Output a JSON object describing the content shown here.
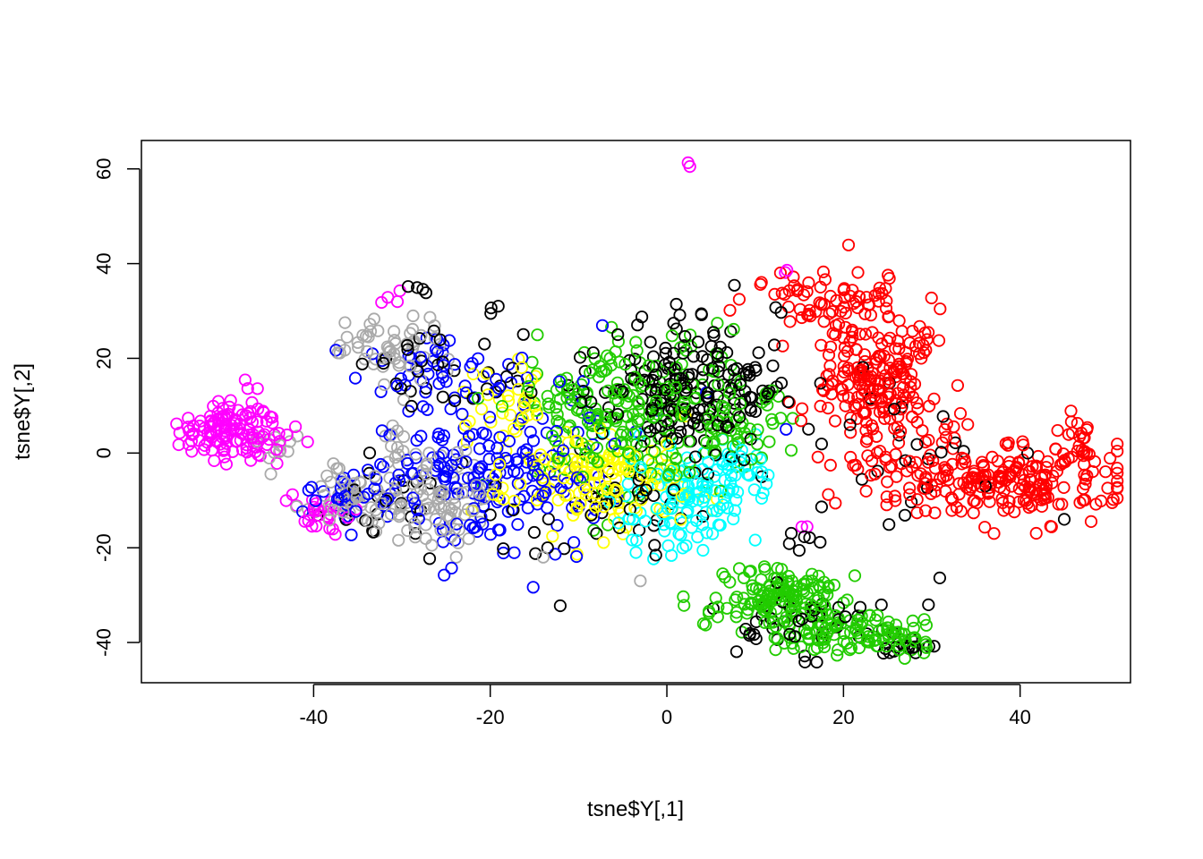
{
  "chart_data": {
    "type": "scatter",
    "title": "",
    "xlabel": "tsne$Y[,1]",
    "ylabel": "tsne$Y[,2]",
    "xlim": [
      -59.5,
      52.5
    ],
    "ylim": [
      -48.5,
      66
    ],
    "xticks": [
      -40,
      -20,
      0,
      20,
      40
    ],
    "yticks": [
      -40,
      -20,
      0,
      20,
      40,
      60
    ],
    "grid": false,
    "legend": "none",
    "marker": "open-circle",
    "colors": {
      "black": "#000000",
      "red": "#ff0000",
      "green": "#22cc00",
      "blue": "#0000ff",
      "cyan": "#00ffff",
      "magenta": "#ff00ff",
      "yellow": "#ffff00",
      "gray": "#aaaaaa"
    },
    "clusters": [
      {
        "color": "magenta",
        "cx": -49,
        "cy": 5,
        "sx": 3.0,
        "sy": 3.6,
        "n": 130,
        "shape": "blob"
      },
      {
        "color": "gray",
        "cx": -44,
        "cy": 2,
        "sx": 1.5,
        "sy": 1.5,
        "n": 10,
        "shape": "blob"
      },
      {
        "color": "red",
        "cx": 24,
        "cy": 16,
        "sx": 3.5,
        "sy": 8,
        "n": 230,
        "shape": "blob"
      },
      {
        "color": "red",
        "cx": 37,
        "cy": -6,
        "sx": 7,
        "sy": 4,
        "n": 220,
        "shape": "blob"
      },
      {
        "color": "red",
        "cx": 17,
        "cy": 33,
        "sx": 4,
        "sy": 2.5,
        "n": 50,
        "shape": "blob"
      },
      {
        "color": "red",
        "cx": 46,
        "cy": 3,
        "sx": 1.8,
        "sy": 3,
        "n": 25,
        "shape": "blob"
      },
      {
        "color": "green",
        "cx": 13,
        "cy": -31,
        "sx": 4,
        "sy": 4,
        "n": 160,
        "shape": "blob"
      },
      {
        "color": "green",
        "cx": 22,
        "cy": -38,
        "sx": 4.5,
        "sy": 2.2,
        "n": 100,
        "shape": "blob"
      },
      {
        "color": "black",
        "cx": 16,
        "cy": -36,
        "sx": 6,
        "sy": 4,
        "n": 45,
        "shape": "blob"
      },
      {
        "color": "black",
        "cx": 28,
        "cy": -41,
        "sx": 2,
        "sy": 1,
        "n": 14,
        "shape": "blob"
      },
      {
        "color": "black",
        "cx": 3,
        "cy": 13,
        "sx": 5.5,
        "sy": 7,
        "n": 190,
        "shape": "blob"
      },
      {
        "color": "green",
        "cx": -3,
        "cy": 8,
        "sx": 6,
        "sy": 8,
        "n": 190,
        "shape": "blob"
      },
      {
        "color": "yellow",
        "cx": -8,
        "cy": -6,
        "sx": 5.5,
        "sy": 5.5,
        "n": 140,
        "shape": "blob"
      },
      {
        "color": "yellow",
        "cx": -18,
        "cy": 10,
        "sx": 2.5,
        "sy": 4,
        "n": 30,
        "shape": "blob"
      },
      {
        "color": "cyan",
        "cx": 2,
        "cy": -10,
        "sx": 4.5,
        "sy": 5,
        "n": 110,
        "shape": "blob"
      },
      {
        "color": "cyan",
        "cx": 8,
        "cy": -3,
        "sx": 2.5,
        "sy": 3,
        "n": 30,
        "shape": "blob"
      },
      {
        "color": "blue",
        "cx": -22,
        "cy": -5,
        "sx": 6,
        "sy": 9,
        "n": 130,
        "shape": "blob"
      },
      {
        "color": "blue",
        "cx": -13,
        "cy": 0,
        "sx": 6,
        "sy": 10,
        "n": 60,
        "shape": "blob"
      },
      {
        "color": "gray",
        "cx": -34,
        "cy": -10,
        "sx": 5,
        "sy": 3.5,
        "n": 85,
        "shape": "blob"
      },
      {
        "color": "gray",
        "cx": -25,
        "cy": -12,
        "sx": 3,
        "sy": 4,
        "n": 45,
        "shape": "blob"
      },
      {
        "color": "blue",
        "cx": -36,
        "cy": -10,
        "sx": 3.5,
        "sy": 3,
        "n": 30,
        "shape": "blob"
      },
      {
        "color": "magenta",
        "cx": -39,
        "cy": -13,
        "sx": 2.5,
        "sy": 3,
        "n": 28,
        "shape": "blob"
      },
      {
        "color": "black",
        "cx": -30,
        "cy": -10,
        "sx": 6,
        "sy": 5,
        "n": 25,
        "shape": "blob"
      },
      {
        "color": "gray",
        "cx": -31,
        "cy": 22,
        "sx": 3,
        "sy": 4,
        "n": 55,
        "shape": "blob"
      },
      {
        "color": "blue",
        "cx": -26,
        "cy": 18,
        "sx": 4,
        "sy": 4,
        "n": 40,
        "shape": "blob"
      },
      {
        "color": "black",
        "cx": -24,
        "cy": 17,
        "sx": 5,
        "sy": 6,
        "n": 35,
        "shape": "blob"
      },
      {
        "color": "magenta",
        "cx": -30,
        "cy": 33,
        "sx": 1,
        "sy": 1,
        "n": 4,
        "shape": "blob"
      },
      {
        "color": "black",
        "cx": -28,
        "cy": 34.5,
        "sx": 0.6,
        "sy": 0.5,
        "n": 4,
        "shape": "blob"
      },
      {
        "color": "gray",
        "cx": -30,
        "cy": 2,
        "sx": 2.5,
        "sy": 5,
        "n": 20,
        "shape": "blob"
      },
      {
        "color": "green",
        "cx": -10,
        "cy": 12,
        "sx": 4,
        "sy": 6,
        "n": 50,
        "shape": "blob"
      },
      {
        "color": "black",
        "cx": -6,
        "cy": -14,
        "sx": 5,
        "sy": 6,
        "n": 40,
        "shape": "blob"
      },
      {
        "color": "green",
        "cx": 8,
        "cy": 5,
        "sx": 3,
        "sy": 5,
        "n": 45,
        "shape": "blob"
      },
      {
        "color": "black",
        "cx": 26,
        "cy": 0,
        "sx": 5,
        "sy": 8,
        "n": 25,
        "shape": "blob"
      },
      {
        "color": "black",
        "cx": 16,
        "cy": -18.5,
        "sx": 1.5,
        "sy": 1,
        "n": 6,
        "shape": "blob"
      },
      {
        "color": "magenta",
        "cx": 15.5,
        "cy": -16,
        "sx": 0.4,
        "sy": 0.3,
        "n": 2,
        "shape": "blob"
      },
      {
        "color": "magenta",
        "cx": 13.5,
        "cy": 38.5,
        "sx": 0.4,
        "sy": 0.4,
        "n": 2,
        "shape": "blob"
      }
    ],
    "points_extra": [
      {
        "color": "magenta",
        "x": 2.4,
        "y": 61.3
      },
      {
        "color": "magenta",
        "x": 2.6,
        "y": 60.5
      },
      {
        "color": "black",
        "x": -13.5,
        "y": -20
      },
      {
        "color": "gray",
        "x": -14,
        "y": -22
      },
      {
        "color": "gray",
        "x": -3,
        "y": -27
      },
      {
        "color": "black",
        "x": 45,
        "y": -14
      },
      {
        "color": "black",
        "x": 9,
        "y": 16.5
      },
      {
        "color": "blue",
        "x": 13.5,
        "y": 5
      }
    ]
  }
}
